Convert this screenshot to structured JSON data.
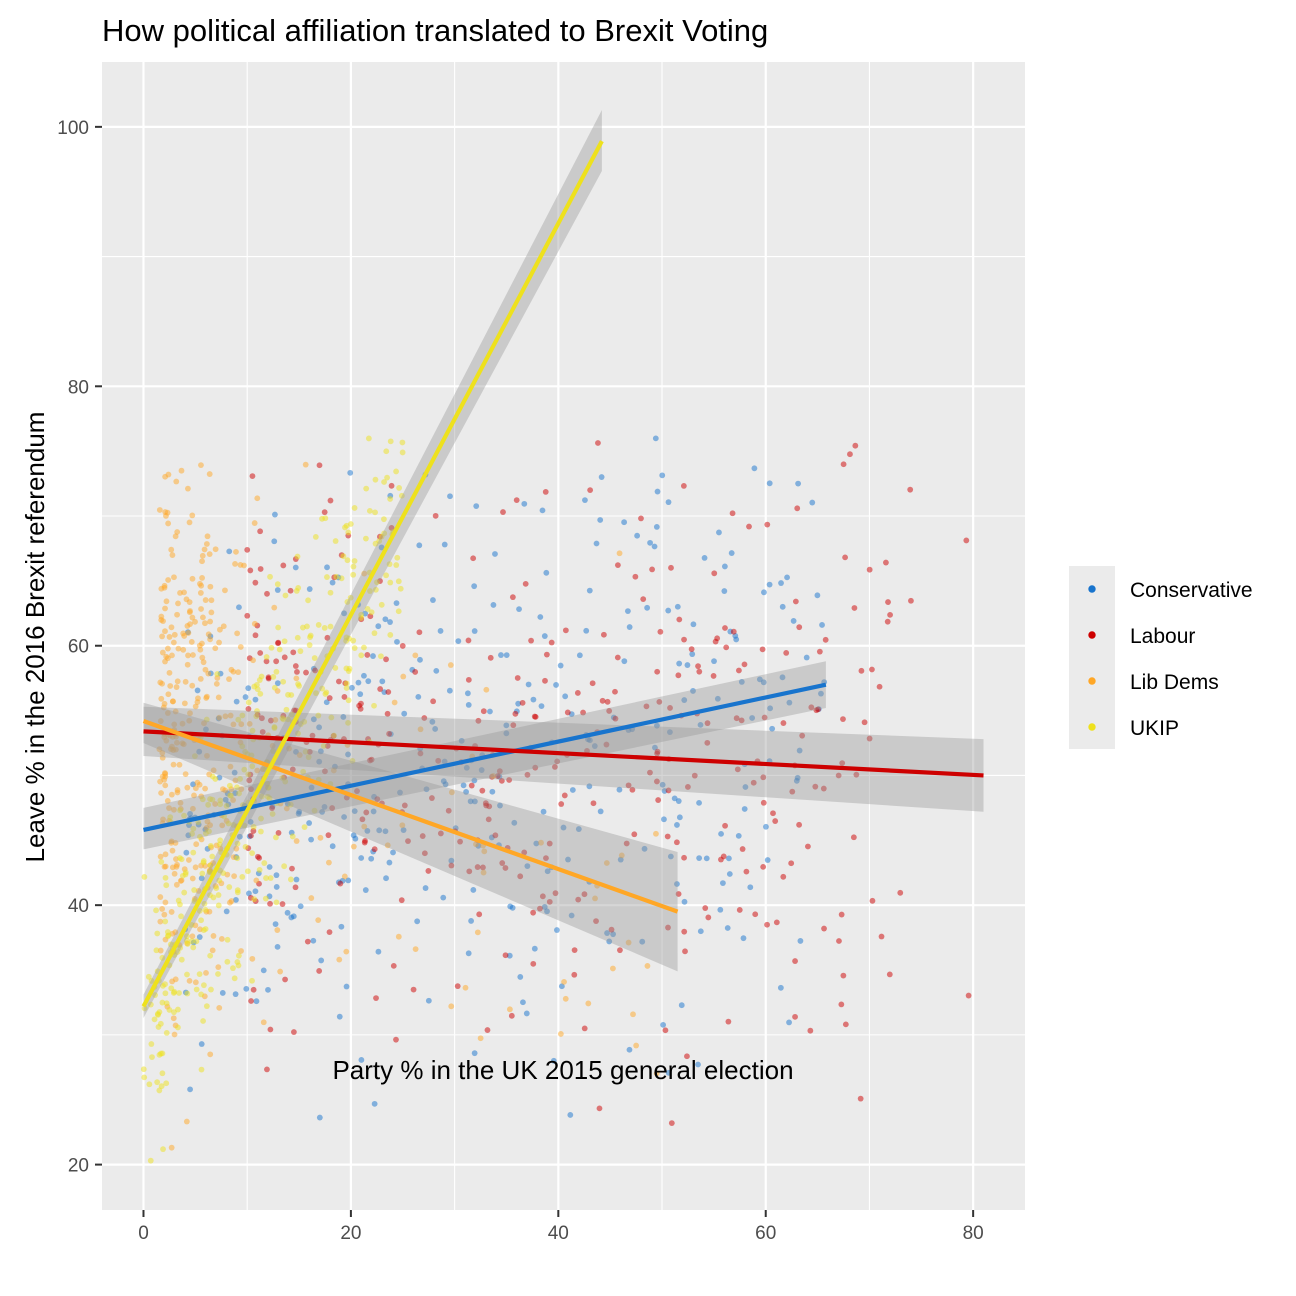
{
  "chart_data": {
    "type": "scatter",
    "title": "How political affiliation translated to Brexit Voting",
    "xlabel": "Party % in the UK 2015 general election",
    "ylabel": "Leave % in the 2016 Brexit referendum",
    "xlim": [
      -4,
      85
    ],
    "ylim": [
      16.5,
      105
    ],
    "x_ticks": [
      0,
      20,
      40,
      60,
      80
    ],
    "y_ticks": [
      20,
      40,
      60,
      80,
      100
    ],
    "grid": true,
    "legend_position": "right",
    "series": [
      {
        "name": "Conservative",
        "color": "#1874CD",
        "fit": {
          "x": [
            0,
            65.8
          ],
          "y": [
            45.8,
            57.0
          ],
          "ci_lower": [
            44.3,
            55.2
          ],
          "ci_upper": [
            47.5,
            58.8
          ]
        }
      },
      {
        "name": "Labour",
        "color": "#CD0000",
        "fit": {
          "x": [
            0,
            81
          ],
          "y": [
            53.4,
            50.0
          ],
          "ci_lower": [
            51.5,
            47.2
          ],
          "ci_upper": [
            55.3,
            52.8
          ]
        }
      },
      {
        "name": "Lib Dems",
        "color": "#FFA726",
        "fit": {
          "x": [
            0,
            51.5
          ],
          "y": [
            54.2,
            39.5
          ],
          "ci_lower": [
            52.5,
            34.9
          ],
          "ci_upper": [
            55.6,
            44.1
          ]
        }
      },
      {
        "name": "UKIP",
        "color": "#EEE11D",
        "fit": {
          "x": [
            0,
            44.2
          ],
          "y": [
            32.2,
            98.9
          ],
          "ci_lower": [
            31.3,
            96.6
          ],
          "ci_upper": [
            33.1,
            101.3
          ]
        }
      }
    ]
  }
}
